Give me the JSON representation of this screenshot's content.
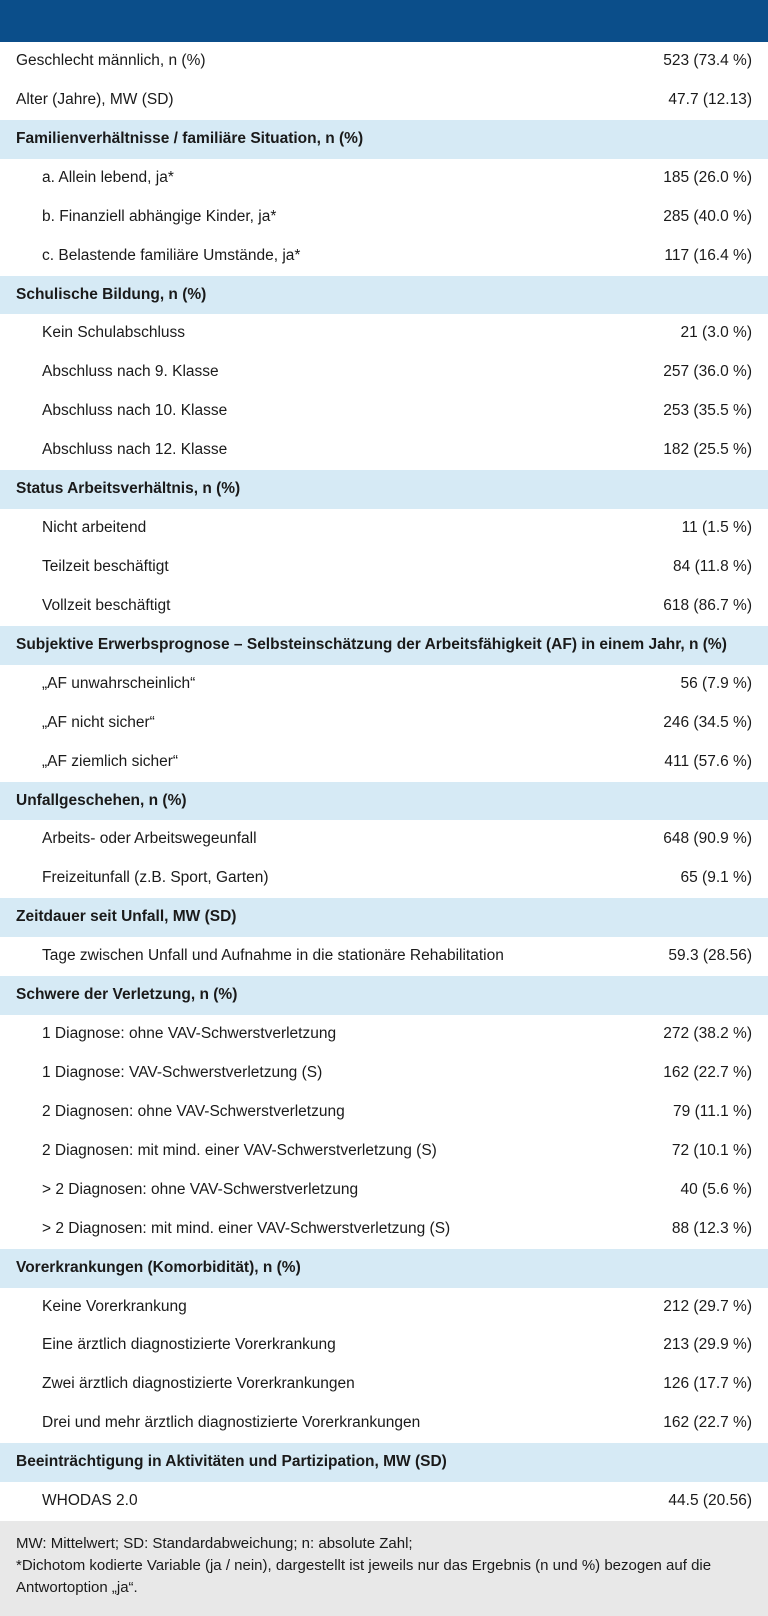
{
  "colors": {
    "topbar": "#0b4e8a",
    "section_bg": "#d6eaf5",
    "plain_bg": "#ffffff",
    "footnote_bg": "#e8e8e8",
    "text": "#1a1a1a"
  },
  "table": {
    "rows": [
      {
        "kind": "plain",
        "label": "Geschlecht männlich, n (%)",
        "value": "523 (73.4 %)"
      },
      {
        "kind": "plain",
        "label": "Alter (Jahre), MW (SD)",
        "value": "47.7 (12.13)"
      },
      {
        "kind": "section",
        "label": "Familienverhältnisse / familiäre Situation, n (%)",
        "value": ""
      },
      {
        "kind": "indent",
        "label": "a. Allein lebend, ja*",
        "value": "185 (26.0 %)"
      },
      {
        "kind": "indent",
        "label": "b. Finanziell abhängige Kinder, ja*",
        "value": "285 (40.0 %)"
      },
      {
        "kind": "indent",
        "label": "c. Belastende familiäre Umstände, ja*",
        "value": "117 (16.4 %)"
      },
      {
        "kind": "section",
        "label": "Schulische Bildung, n (%)",
        "value": ""
      },
      {
        "kind": "indent",
        "label": "Kein Schulabschluss",
        "value": "21 (3.0 %)"
      },
      {
        "kind": "indent",
        "label": "Abschluss nach 9. Klasse",
        "value": "257 (36.0 %)"
      },
      {
        "kind": "indent",
        "label": "Abschluss nach 10. Klasse",
        "value": "253 (35.5 %)"
      },
      {
        "kind": "indent",
        "label": "Abschluss nach 12. Klasse",
        "value": "182 (25.5 %)"
      },
      {
        "kind": "section",
        "label": "Status Arbeitsverhältnis, n (%)",
        "value": ""
      },
      {
        "kind": "indent",
        "label": "Nicht arbeitend",
        "value": "11 (1.5 %)"
      },
      {
        "kind": "indent",
        "label": "Teilzeit beschäftigt",
        "value": "84 (11.8 %)"
      },
      {
        "kind": "indent",
        "label": "Vollzeit beschäftigt",
        "value": "618 (86.7 %)"
      },
      {
        "kind": "section",
        "label": "Subjektive Erwerbsprognose – Selbsteinschätzung der Arbeitsfähigkeit (AF) in einem Jahr, n (%)",
        "value": ""
      },
      {
        "kind": "indent",
        "label": "„AF unwahrscheinlich“",
        "value": "56 (7.9 %)"
      },
      {
        "kind": "indent",
        "label": "„AF nicht sicher“",
        "value": "246 (34.5 %)"
      },
      {
        "kind": "indent",
        "label": "„AF ziemlich sicher“",
        "value": "411 (57.6 %)"
      },
      {
        "kind": "section",
        "label": "Unfallgeschehen, n (%)",
        "value": ""
      },
      {
        "kind": "indent",
        "label": "Arbeits- oder Arbeitswegeunfall",
        "value": "648 (90.9 %)"
      },
      {
        "kind": "indent",
        "label": "Freizeitunfall (z.B. Sport, Garten)",
        "value": "65 (9.1 %)"
      },
      {
        "kind": "section",
        "label": "Zeitdauer seit Unfall, MW (SD)",
        "value": ""
      },
      {
        "kind": "indent",
        "label": "Tage zwischen Unfall und Aufnahme in die stationäre Rehabilitation",
        "value": "59.3 (28.56)"
      },
      {
        "kind": "section",
        "label": "Schwere der Verletzung, n (%)",
        "value": ""
      },
      {
        "kind": "indent",
        "label": "1 Diagnose: ohne VAV-Schwerstverletzung",
        "value": "272 (38.2 %)"
      },
      {
        "kind": "indent",
        "label": "1 Diagnose: VAV-Schwerstverletzung (S)",
        "value": "162 (22.7 %)"
      },
      {
        "kind": "indent",
        "label": "2 Diagnosen: ohne VAV-Schwerstverletzung",
        "value": "79 (11.1 %)"
      },
      {
        "kind": "indent",
        "label": "2 Diagnosen: mit mind. einer VAV-Schwerstverletzung (S)",
        "value": "72 (10.1 %)"
      },
      {
        "kind": "indent",
        "label": "> 2 Diagnosen: ohne VAV-Schwerstverletzung",
        "value": "40 (5.6 %)"
      },
      {
        "kind": "indent",
        "label": "> 2 Diagnosen: mit mind. einer VAV-Schwerstverletzung (S)",
        "value": "88 (12.3 %)"
      },
      {
        "kind": "section",
        "label": "Vorerkrankungen (Komorbidität), n (%)",
        "value": ""
      },
      {
        "kind": "indent",
        "label": "Keine Vorerkrankung",
        "value": "212 (29.7 %)"
      },
      {
        "kind": "indent",
        "label": "Eine ärztlich diagnostizierte Vorerkrankung",
        "value": "213 (29.9 %)"
      },
      {
        "kind": "indent",
        "label": "Zwei ärztlich diagnostizierte Vorerkrankungen",
        "value": "126 (17.7 %)"
      },
      {
        "kind": "indent",
        "label": "Drei und mehr ärztlich diagnostizierte Vorerkrankungen",
        "value": "162 (22.7 %)"
      },
      {
        "kind": "section",
        "label": "Beeinträchtigung in Aktivitäten und Partizipation, MW (SD)",
        "value": ""
      },
      {
        "kind": "indent",
        "label": "WHODAS 2.0",
        "value": "44.5 (20.56)"
      }
    ]
  },
  "footnote": {
    "line1": "MW: Mittelwert; SD: Standardabweichung; n: absolute Zahl;",
    "line2": "*Dichotom kodierte Variable (ja / nein), dargestellt ist jeweils nur das Ergebnis (n und %) bezogen auf die Antwortoption „ja“."
  }
}
